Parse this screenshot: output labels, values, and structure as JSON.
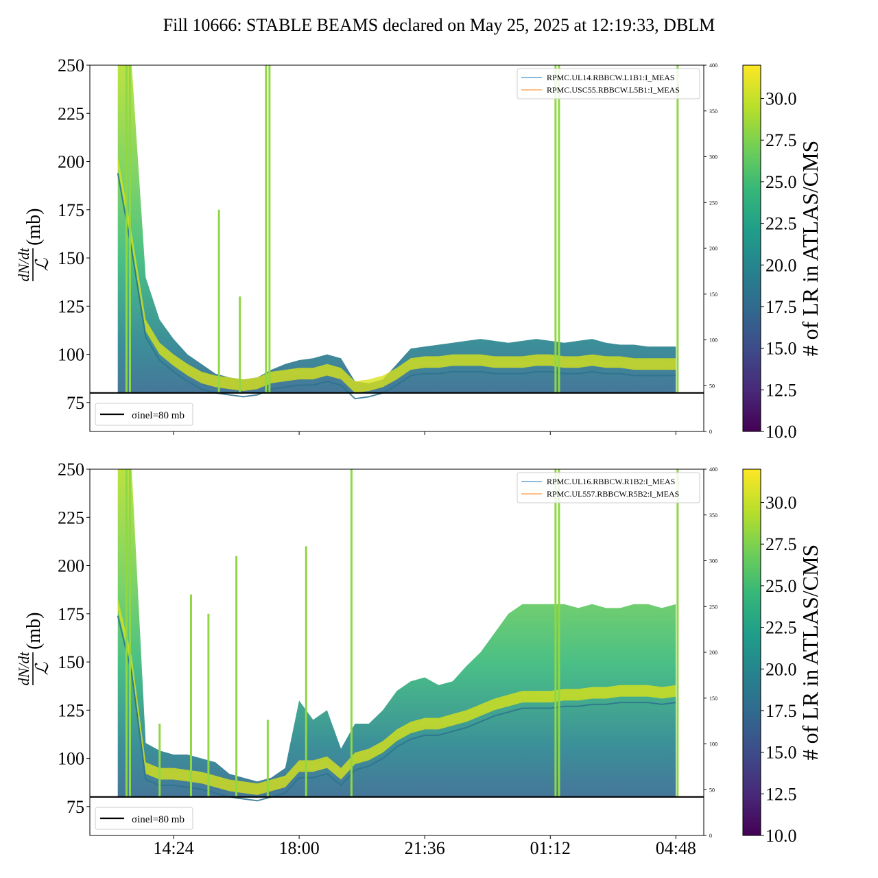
{
  "title": "Fill 10666: STABLE BEAMS declared on May 25, 2025 at 12:19:33, DBLM",
  "colorbar_label": "# of LR in ATLAS/CMS",
  "colormap": [
    "#440154",
    "#482878",
    "#3e4a89",
    "#31688e",
    "#26828e",
    "#1f9e89",
    "#35b779",
    "#6ece58",
    "#b5de2b",
    "#fde725"
  ],
  "x_tick_labels": [
    "14:24",
    "18:00",
    "21:36",
    "01:12",
    "04:48"
  ],
  "chart_data": [
    {
      "type": "area",
      "ylabel_main": "dN/dt",
      "ylabel_frac": "ℒ",
      "ylabel_unit": "(mb)",
      "ylim": [
        60,
        250
      ],
      "y_ticks": [
        75,
        100,
        125,
        150,
        175,
        200,
        225,
        250
      ],
      "y2lim": [
        0,
        400
      ],
      "y2_ticks": [
        0,
        50,
        100,
        150,
        200,
        250,
        300,
        350,
        400
      ],
      "xlim_hours": [
        12.0,
        29.6
      ],
      "x_tick_hours": [
        14.4,
        18.0,
        21.6,
        25.2,
        28.8
      ],
      "colorbar_ticks": [
        "10.0",
        "12.5",
        "15.0",
        "17.5",
        "20.0",
        "22.5",
        "25.0",
        "27.5",
        "30.0"
      ],
      "colorbar_range": [
        10,
        32
      ],
      "series": [
        {
          "name": "RPMC.UL14.RBBCW.L1B1:I_MEAS",
          "color": "#1f77b4"
        },
        {
          "name": "RPMC.USC55.RBBCW.L5B1:I_MEAS",
          "color": "#ff7f0e"
        }
      ],
      "band_hours": [
        12.8,
        13.2,
        13.6,
        14.0,
        14.4,
        14.8,
        15.2,
        15.6,
        16.0,
        16.4,
        16.8,
        17.2,
        17.6,
        18.0,
        18.4,
        18.8,
        19.2,
        19.6,
        20.0,
        20.4,
        20.8,
        21.2,
        21.6,
        22.0,
        22.4,
        22.8,
        23.2,
        23.6,
        24.0,
        24.4,
        24.8,
        25.2,
        25.6,
        26.0,
        26.4,
        26.8,
        27.2,
        27.6,
        28.0,
        28.4,
        28.8
      ],
      "band_upper": [
        250,
        250,
        140,
        118,
        108,
        100,
        95,
        90,
        88,
        87,
        88,
        92,
        95,
        97,
        98,
        100,
        98,
        86,
        85,
        87,
        95,
        103,
        104,
        105,
        106,
        107,
        108,
        107,
        106,
        107,
        108,
        107,
        106,
        107,
        108,
        106,
        105,
        105,
        104,
        104,
        104
      ],
      "band_mid": [
        200,
        160,
        115,
        103,
        97,
        92,
        88,
        86,
        85,
        84,
        85,
        88,
        89,
        90,
        90,
        92,
        90,
        83,
        84,
        86,
        90,
        95,
        96,
        96,
        97,
        97,
        97,
        96,
        96,
        96,
        97,
        97,
        96,
        96,
        97,
        96,
        96,
        95,
        95,
        95,
        95
      ],
      "baseline": 80,
      "hline_label": "σinel=80 mb",
      "hline_value": 80,
      "spikes_hours": [
        13.05,
        13.15,
        15.7,
        16.3,
        17.05,
        17.15,
        25.35,
        25.45,
        28.85
      ],
      "spikes_top": [
        250,
        250,
        175,
        130,
        250,
        250,
        250,
        250,
        250
      ]
    },
    {
      "type": "area",
      "ylabel_main": "dN/dt",
      "ylabel_frac": "ℒ",
      "ylabel_unit": "(mb)",
      "ylim": [
        60,
        250
      ],
      "y_ticks": [
        75,
        100,
        125,
        150,
        175,
        200,
        225,
        250
      ],
      "y2lim": [
        0,
        400
      ],
      "y2_ticks": [
        0,
        50,
        100,
        150,
        200,
        250,
        300,
        350,
        400
      ],
      "xlim_hours": [
        12.0,
        29.6
      ],
      "x_tick_hours": [
        14.4,
        18.0,
        21.6,
        25.2,
        28.8
      ],
      "colorbar_ticks": [
        "10.0",
        "12.5",
        "15.0",
        "17.5",
        "20.0",
        "22.5",
        "25.0",
        "27.5",
        "30.0"
      ],
      "colorbar_range": [
        10,
        32
      ],
      "series": [
        {
          "name": "RPMC.UL16.RBBCW.R1B2:I_MEAS",
          "color": "#1f77b4"
        },
        {
          "name": "RPMC.UL557.RBBCW.R5B2:I_MEAS",
          "color": "#ff7f0e"
        }
      ],
      "band_hours": [
        12.8,
        13.2,
        13.6,
        14.0,
        14.4,
        14.8,
        15.2,
        15.6,
        16.0,
        16.4,
        16.8,
        17.2,
        17.6,
        18.0,
        18.4,
        18.8,
        19.2,
        19.6,
        20.0,
        20.4,
        20.8,
        21.2,
        21.6,
        22.0,
        22.4,
        22.8,
        23.2,
        23.6,
        24.0,
        24.4,
        24.8,
        25.2,
        25.6,
        26.0,
        26.4,
        26.8,
        27.2,
        27.6,
        28.0,
        28.4,
        28.8
      ],
      "band_upper": [
        250,
        250,
        108,
        104,
        102,
        102,
        100,
        98,
        92,
        90,
        88,
        90,
        95,
        130,
        120,
        125,
        105,
        118,
        118,
        125,
        135,
        140,
        142,
        138,
        140,
        148,
        155,
        165,
        175,
        180,
        180,
        180,
        180,
        178,
        180,
        178,
        178,
        180,
        180,
        178,
        180
      ],
      "band_mid": [
        180,
        150,
        95,
        92,
        92,
        91,
        90,
        88,
        86,
        85,
        84,
        86,
        88,
        96,
        96,
        98,
        92,
        100,
        102,
        106,
        112,
        116,
        118,
        118,
        120,
        122,
        125,
        128,
        130,
        132,
        132,
        132,
        133,
        133,
        134,
        134,
        135,
        135,
        135,
        134,
        135
      ],
      "baseline": 80,
      "hline_label": "σinel=80 mb",
      "hline_value": 80,
      "spikes_hours": [
        13.05,
        13.15,
        14.0,
        14.9,
        15.4,
        16.2,
        17.1,
        18.2,
        19.5,
        25.35,
        25.45,
        28.85
      ],
      "spikes_top": [
        250,
        250,
        118,
        185,
        175,
        205,
        120,
        210,
        250,
        250,
        250,
        250
      ]
    }
  ]
}
